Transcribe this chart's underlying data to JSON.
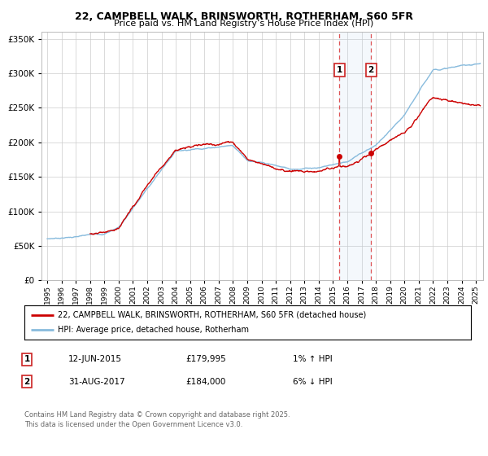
{
  "title": "22, CAMPBELL WALK, BRINSWORTH, ROTHERHAM, S60 5FR",
  "subtitle": "Price paid vs. HM Land Registry’s House Price Index (HPI)",
  "legend_line1": "22, CAMPBELL WALK, BRINSWORTH, ROTHERHAM, S60 5FR (detached house)",
  "legend_line2": "HPI: Average price, detached house, Rotherham",
  "footnote": "Contains HM Land Registry data © Crown copyright and database right 2025.\nThis data is licensed under the Open Government Licence v3.0.",
  "property_color": "#cc0000",
  "hpi_color": "#88bbdd",
  "marker1_date": 2015.44,
  "marker2_date": 2017.66,
  "ylim": [
    0,
    360000
  ],
  "xlim_start": 1994.6,
  "xlim_end": 2025.5,
  "background_color": "#ffffff",
  "grid_color": "#cccccc",
  "marker1_price": 179995,
  "marker2_price": 184000
}
